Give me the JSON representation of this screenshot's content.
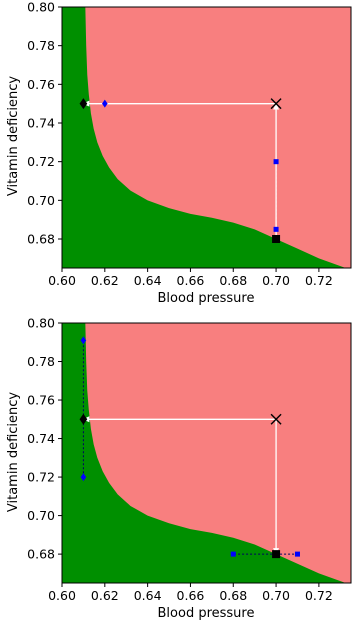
{
  "colors": {
    "region_high": "#f87f7f",
    "region_low": "#008f00",
    "arrow": "#ffffff",
    "start_marker": "#000000",
    "end_marker": "#000000",
    "candidate_marker": "#0000ff",
    "axis": "#000000"
  },
  "chart_data": [
    {
      "type": "scatter",
      "xlabel": "Blood pressure",
      "ylabel": "Vitamin deficiency",
      "xlim": [
        0.6,
        0.735
      ],
      "ylim": [
        0.665,
        0.8
      ],
      "xticks": [
        "0.60",
        "0.62",
        "0.64",
        "0.66",
        "0.68",
        "0.70",
        "0.72"
      ],
      "yticks": [
        "0.68",
        "0.70",
        "0.72",
        "0.74",
        "0.76",
        "0.78",
        "0.80"
      ],
      "decision_boundary": {
        "x": [
          0.6109,
          0.6113,
          0.6118,
          0.6125,
          0.6135,
          0.6148,
          0.6165,
          0.619,
          0.622,
          0.626,
          0.632,
          0.64,
          0.65,
          0.66,
          0.67,
          0.68,
          0.69,
          0.7,
          0.71,
          0.72,
          0.735
        ],
        "y": [
          0.8,
          0.78,
          0.765,
          0.755,
          0.745,
          0.737,
          0.73,
          0.723,
          0.717,
          0.711,
          0.705,
          0.7,
          0.696,
          0.693,
          0.691,
          0.6885,
          0.685,
          0.68,
          0.675,
          0.67,
          0.664
        ]
      },
      "points": {
        "cross": {
          "x": 0.7,
          "y": 0.75
        },
        "start": {
          "x": 0.7,
          "y": 0.68
        },
        "end": {
          "x": 0.61,
          "y": 0.75
        },
        "candidates": [
          {
            "x": 0.62,
            "y": 0.75
          },
          {
            "x": 0.7,
            "y": 0.72
          },
          {
            "x": 0.7,
            "y": 0.685
          }
        ]
      },
      "arrows": [
        {
          "from": [
            0.7,
            0.68
          ],
          "to": [
            0.7,
            0.75
          ]
        },
        {
          "from": [
            0.7,
            0.75
          ],
          "to": [
            0.61,
            0.75
          ]
        }
      ]
    },
    {
      "type": "scatter",
      "xlabel": "Blood pressure",
      "ylabel": "Vitamin deficiency",
      "xlim": [
        0.6,
        0.735
      ],
      "ylim": [
        0.665,
        0.8
      ],
      "xticks": [
        "0.60",
        "0.62",
        "0.64",
        "0.66",
        "0.68",
        "0.70",
        "0.72"
      ],
      "yticks": [
        "0.68",
        "0.70",
        "0.72",
        "0.74",
        "0.76",
        "0.78",
        "0.80"
      ],
      "decision_boundary": {
        "x": [
          0.6109,
          0.6113,
          0.6118,
          0.6125,
          0.6135,
          0.6148,
          0.6165,
          0.619,
          0.622,
          0.626,
          0.632,
          0.64,
          0.65,
          0.66,
          0.67,
          0.68,
          0.69,
          0.7,
          0.71,
          0.72,
          0.735
        ],
        "y": [
          0.8,
          0.78,
          0.765,
          0.755,
          0.745,
          0.737,
          0.73,
          0.723,
          0.717,
          0.711,
          0.705,
          0.7,
          0.696,
          0.693,
          0.691,
          0.6885,
          0.685,
          0.68,
          0.675,
          0.67,
          0.664
        ]
      },
      "points": {
        "cross": {
          "x": 0.7,
          "y": 0.75
        },
        "start": {
          "x": 0.7,
          "y": 0.68
        },
        "end": {
          "x": 0.61,
          "y": 0.75
        },
        "candidates": [
          {
            "x": 0.61,
            "y": 0.791
          },
          {
            "x": 0.61,
            "y": 0.72
          },
          {
            "x": 0.68,
            "y": 0.68
          },
          {
            "x": 0.71,
            "y": 0.68
          }
        ]
      },
      "arrows": [
        {
          "from": [
            0.7,
            0.75
          ],
          "to": [
            0.61,
            0.75
          ]
        },
        {
          "from": [
            0.7,
            0.75
          ],
          "to": [
            0.7,
            0.68
          ]
        }
      ]
    }
  ]
}
